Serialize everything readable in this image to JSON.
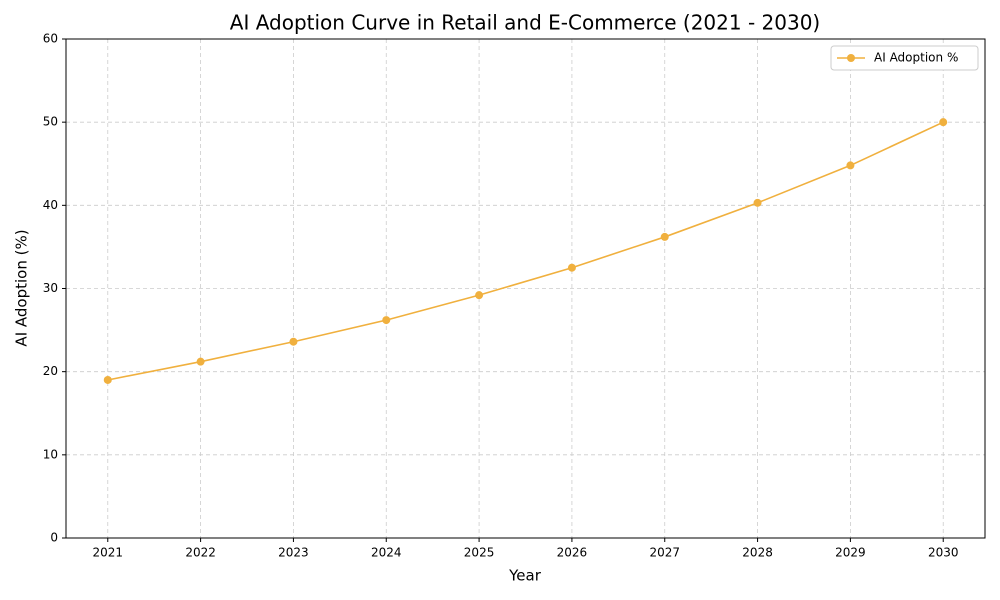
{
  "chart_data": {
    "type": "line",
    "title": "AI Adoption Curve in Retail and E-Commerce (2021 - 2030)",
    "x_label": "Year",
    "y_label": "AI Adoption (%)",
    "x": [
      2021,
      2022,
      2023,
      2024,
      2025,
      2026,
      2027,
      2028,
      2029,
      2030
    ],
    "series": [
      {
        "name": "AI Adoption %",
        "color": "#f0b03e",
        "values": [
          19.0,
          21.2,
          23.6,
          26.2,
          29.2,
          32.5,
          36.2,
          40.3,
          44.8,
          50.0
        ]
      }
    ],
    "xlim": [
      2020.55,
      2030.45
    ],
    "xticks": [
      2021,
      2022,
      2023,
      2024,
      2025,
      2026,
      2027,
      2028,
      2029,
      2030
    ],
    "ylim": [
      0,
      60
    ],
    "yticks": [
      0,
      10,
      20,
      30,
      40,
      50,
      60
    ],
    "grid": true,
    "legend": "upper right"
  }
}
